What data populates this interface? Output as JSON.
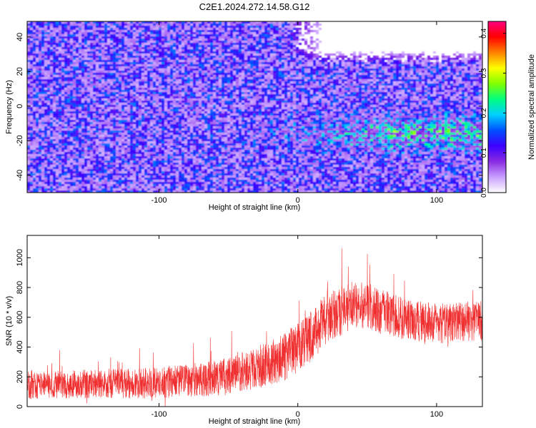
{
  "title": "C2E1.2024.272.14.58.G12",
  "chart_data": [
    {
      "type": "heatmap",
      "xlabel": "Height of straight line (km)",
      "ylabel": "Frequency (Hz)",
      "xlim": [
        -195,
        133
      ],
      "ylim": [
        -50,
        49
      ],
      "xticks": [
        -100,
        0,
        100
      ],
      "xtick_labels": [
        "-100",
        "0",
        "100"
      ],
      "yticks": [
        -40,
        -20,
        0,
        20,
        40
      ],
      "ytick_labels": [
        "-40",
        "-20",
        "0",
        "20",
        "40"
      ],
      "colorbar": {
        "label": "Normalized spectral amplitude",
        "range": [
          0.0,
          0.43
        ],
        "ticks": [
          0.0,
          0.1,
          0.2,
          0.3,
          0.4
        ],
        "tick_labels": [
          "0.0",
          "0.1",
          "0.2",
          "0.3",
          "0.4"
        ],
        "colormap": [
          "#ffffff",
          "#c8a0ff",
          "#8a2be2",
          "#3c00ff",
          "#0050ff",
          "#00d0ff",
          "#00ff80",
          "#80ff00",
          "#ffff00",
          "#ff8000",
          "#ff0000",
          "#ff0080"
        ]
      },
      "features": {
        "strong_band_center_hz": -15,
        "strong_band_start_km": -40,
        "quiet_region": {
          "x_range": [
            0,
            133
          ],
          "y_range": [
            25,
            49
          ]
        }
      }
    },
    {
      "type": "line",
      "xlabel": "Height of straight line (km)",
      "ylabel": "SNR (10 * v/v)",
      "xlim": [
        -195,
        133
      ],
      "ylim": [
        0,
        1150
      ],
      "xticks": [
        -100,
        0,
        100
      ],
      "xtick_labels": [
        "-100",
        "0",
        "100"
      ],
      "yticks": [
        0,
        200,
        400,
        600,
        800,
        1000
      ],
      "ytick_labels": [
        "0",
        "200",
        "400",
        "600",
        "800",
        "1000"
      ],
      "color": "#f03030",
      "series": [
        {
          "x": [
            -195,
            -180,
            -160,
            -140,
            -120,
            -100,
            -80,
            -60,
            -40,
            -30,
            -20,
            -10,
            0,
            10,
            20,
            30,
            40,
            50,
            60,
            70,
            80,
            90,
            100,
            110,
            120,
            133
          ],
          "y": [
            150,
            145,
            150,
            155,
            155,
            160,
            175,
            190,
            230,
            260,
            290,
            330,
            400,
            480,
            580,
            640,
            690,
            680,
            640,
            610,
            580,
            570,
            560,
            560,
            570,
            580
          ],
          "spread": [
            200,
            190,
            190,
            200,
            200,
            210,
            220,
            240,
            260,
            280,
            300,
            320,
            340,
            350,
            350,
            340,
            330,
            310,
            300,
            290,
            280,
            270,
            270,
            270,
            270,
            270
          ]
        }
      ]
    }
  ]
}
